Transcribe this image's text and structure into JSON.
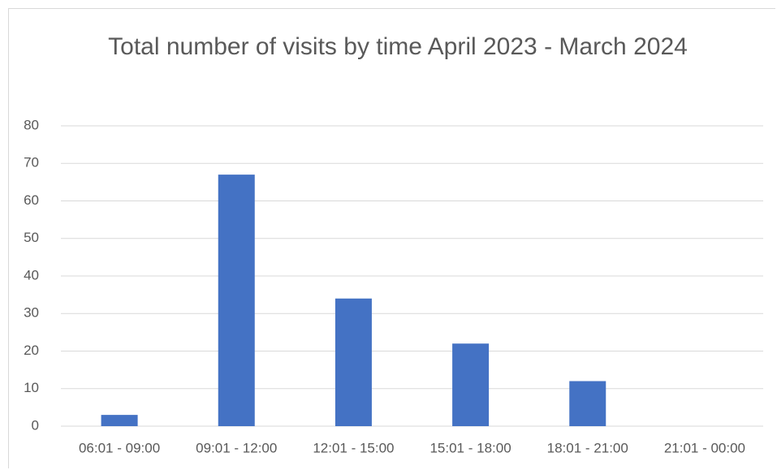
{
  "chart_data": {
    "type": "bar",
    "title": "Total number of visits by time April 2023 - March 2024",
    "categories": [
      "06:01 - 09:00",
      "09:01 - 12:00",
      "12:01 - 15:00",
      "15:01 - 18:00",
      "18:01 - 21:00",
      "21:01 - 00:00"
    ],
    "values": [
      3,
      67,
      34,
      22,
      12,
      0
    ],
    "color": "#4472c4",
    "ylim": [
      0,
      80
    ],
    "yticks": [
      0,
      10,
      20,
      30,
      40,
      50,
      60,
      70,
      80
    ],
    "grid": true
  }
}
